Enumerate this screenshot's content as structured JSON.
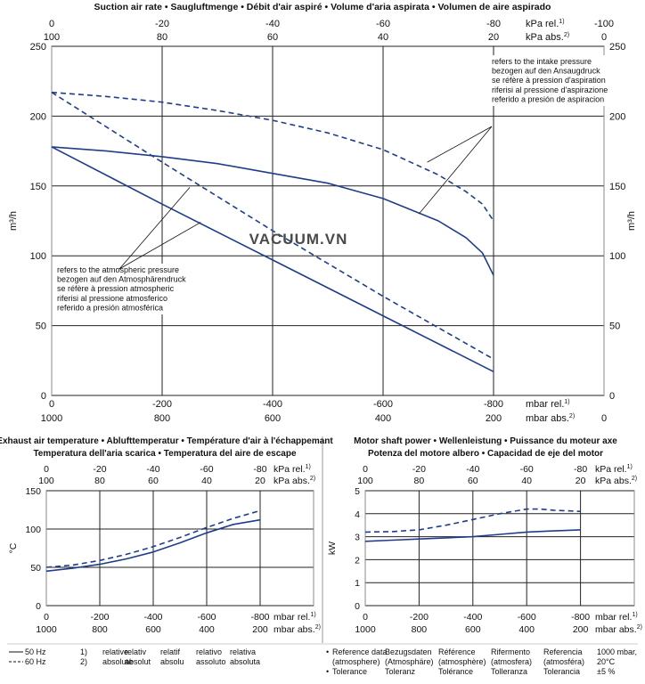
{
  "brand": {
    "watermark": "VACUUM.VN"
  },
  "colors": {
    "line": "#1f3d8a",
    "grid": "#222222",
    "text": "#111111",
    "frame": "#888888"
  },
  "chart_data": [
    {
      "id": "suction",
      "type": "line",
      "title": "Suction air rate  •  Saugluftmenge  •  Débit d'air aspiré  •  Volume d'aria aspirata  •  Volumen de aire aspirado",
      "ylabel": "m³/h",
      "xlim": [
        0,
        -1000
      ],
      "ylim": [
        0,
        250
      ],
      "yticks": [
        0,
        50,
        100,
        150,
        200,
        250
      ],
      "yticklabels": [
        "0",
        "50",
        "100",
        "150",
        "200",
        "250"
      ],
      "xgrid": [
        0,
        -200,
        -400,
        -600,
        -800,
        -1000
      ],
      "bottom_ticks": [
        {
          "x": 0,
          "rel": "0",
          "abs": "1000"
        },
        {
          "x": -200,
          "rel": "-200",
          "abs": "800"
        },
        {
          "x": -400,
          "rel": "-400",
          "abs": "600"
        },
        {
          "x": -600,
          "rel": "-600",
          "abs": "400"
        },
        {
          "x": -800,
          "rel": "-800",
          "abs": "200"
        },
        {
          "x": -1000,
          "rel": "",
          "abs": "0"
        }
      ],
      "bottom_units": {
        "rel": "mbar rel.",
        "abs": "mbar abs.",
        "rel_sup": "1)",
        "abs_sup": "2)"
      },
      "top_ticks": [
        {
          "x": 0,
          "rel": "0",
          "abs": "100"
        },
        {
          "x": -200,
          "rel": "-20",
          "abs": "80"
        },
        {
          "x": -400,
          "rel": "-40",
          "abs": "60"
        },
        {
          "x": -600,
          "rel": "-60",
          "abs": "40"
        },
        {
          "x": -800,
          "rel": "-80",
          "abs": "20"
        },
        {
          "x": -1000,
          "rel": "-100",
          "abs": "0"
        }
      ],
      "top_units": {
        "rel": "kPa rel.",
        "abs": "kPa abs.",
        "rel_sup": "1)",
        "abs_sup": "2)"
      },
      "series": [
        {
          "name": "50 Hz intake",
          "dash": false,
          "x": [
            0,
            -100,
            -200,
            -300,
            -400,
            -500,
            -600,
            -700,
            -750,
            -780,
            -800
          ],
          "y": [
            178,
            175,
            171,
            166,
            159,
            152,
            141,
            125,
            113,
            102,
            86
          ]
        },
        {
          "name": "60 Hz intake",
          "dash": true,
          "x": [
            0,
            -100,
            -200,
            -300,
            -400,
            -500,
            -600,
            -700,
            -750,
            -780,
            -800
          ],
          "y": [
            217,
            214,
            210,
            204,
            197,
            188,
            176,
            158,
            146,
            137,
            125
          ]
        },
        {
          "name": "50 Hz atmospheric",
          "dash": false,
          "x": [
            0,
            -200,
            -400,
            -600,
            -800
          ],
          "y": [
            178,
            137,
            97,
            57,
            17
          ]
        },
        {
          "name": "60 Hz atmospheric",
          "dash": true,
          "x": [
            0,
            -200,
            -400,
            -600,
            -800
          ],
          "y": [
            217,
            167,
            118,
            71,
            26
          ]
        }
      ],
      "annotations": [
        {
          "lines": [
            "refers to the intake pressure",
            "bezogen auf den Ansaugdruck",
            "se réfère à pression d'aspiration",
            "riferisi al pressione d'aspirazione",
            "referido a presión de aspiracion"
          ],
          "targets": [
            {
              "x": -680,
              "y": 167
            },
            {
              "x": -665,
              "y": 130
            }
          ]
        },
        {
          "lines": [
            "refers to the atmospheric pressure",
            "bezogen auf den Atmosphärendruck",
            "se réfère à pression atmospheric",
            "riferisi al pressione atmosferico",
            "referido a presión atmosférica"
          ],
          "targets": [
            {
              "x": -250,
              "y": 149
            },
            {
              "x": -270,
              "y": 124
            }
          ]
        }
      ]
    },
    {
      "id": "temperature",
      "type": "line",
      "title": [
        "Exhaust air temperature  •  Ablufttemperatur  •  Température d'air à l'échappemant",
        "Temperatura dell'aria scarica  •  Temperatura del aire de escape"
      ],
      "ylabel": "°C",
      "xlim": [
        0,
        -1000
      ],
      "ylim": [
        0,
        150
      ],
      "yticks": [
        0,
        50,
        100,
        150
      ],
      "yticklabels": [
        "0",
        "50",
        "100",
        "150"
      ],
      "xgrid": [
        0,
        -200,
        -400,
        -600,
        -800,
        -1000
      ],
      "bottom_ticks": [
        {
          "x": 0,
          "rel": "0",
          "abs": "1000"
        },
        {
          "x": -200,
          "rel": "-200",
          "abs": "800"
        },
        {
          "x": -400,
          "rel": "-400",
          "abs": "600"
        },
        {
          "x": -600,
          "rel": "-600",
          "abs": "400"
        },
        {
          "x": -800,
          "rel": "-800",
          "abs": "200"
        }
      ],
      "bottom_units": {
        "rel": "mbar rel.",
        "abs": "mbar abs.",
        "rel_sup": "1)",
        "abs_sup": "2)"
      },
      "top_ticks": [
        {
          "x": 0,
          "rel": "0",
          "abs": "100"
        },
        {
          "x": -200,
          "rel": "-20",
          "abs": "80"
        },
        {
          "x": -400,
          "rel": "-40",
          "abs": "60"
        },
        {
          "x": -600,
          "rel": "-60",
          "abs": "40"
        },
        {
          "x": -800,
          "rel": "-80",
          "abs": "20"
        }
      ],
      "top_units": {
        "rel": "kPa rel.",
        "abs": "kPa abs.",
        "rel_sup": "1)",
        "abs_sup": "2)"
      },
      "series": [
        {
          "name": "50 Hz",
          "dash": false,
          "x": [
            0,
            -100,
            -200,
            -300,
            -400,
            -500,
            -600,
            -700,
            -800
          ],
          "y": [
            45,
            49,
            54,
            61,
            70,
            82,
            95,
            106,
            112
          ]
        },
        {
          "name": "60 Hz",
          "dash": true,
          "x": [
            0,
            -100,
            -200,
            -300,
            -400,
            -500,
            -600,
            -700,
            -800
          ],
          "y": [
            50,
            53,
            59,
            67,
            77,
            89,
            102,
            114,
            124
          ]
        }
      ]
    },
    {
      "id": "power",
      "type": "line",
      "title": [
        "Motor shaft power  •  Wellenleistung  •  Puissance du moteur axe",
        "Potenza del motore albero  •  Capacidad de eje del motor"
      ],
      "ylabel": "kW",
      "xlim": [
        0,
        -1000
      ],
      "ylim": [
        0,
        5
      ],
      "yticks": [
        0,
        1,
        2,
        3,
        4,
        5
      ],
      "yticklabels": [
        "0",
        "1",
        "2",
        "3",
        "4",
        "5"
      ],
      "xgrid": [
        0,
        -200,
        -400,
        -600,
        -800,
        -1000
      ],
      "bottom_ticks": [
        {
          "x": 0,
          "rel": "0",
          "abs": "1000"
        },
        {
          "x": -200,
          "rel": "-200",
          "abs": "800"
        },
        {
          "x": -400,
          "rel": "-400",
          "abs": "600"
        },
        {
          "x": -600,
          "rel": "-600",
          "abs": "400"
        },
        {
          "x": -800,
          "rel": "-800",
          "abs": "200"
        }
      ],
      "bottom_units": {
        "rel": "mbar rel.",
        "abs": "mbar abs.",
        "rel_sup": "1)",
        "abs_sup": "2)"
      },
      "top_ticks": [
        {
          "x": 0,
          "rel": "0",
          "abs": "100"
        },
        {
          "x": -200,
          "rel": "-20",
          "abs": "80"
        },
        {
          "x": -400,
          "rel": "-40",
          "abs": "60"
        },
        {
          "x": -600,
          "rel": "-60",
          "abs": "40"
        },
        {
          "x": -800,
          "rel": "-80",
          "abs": "20"
        }
      ],
      "top_units": {
        "rel": "kPa rel.",
        "abs": "kPa abs.",
        "rel_sup": "1)",
        "abs_sup": "2)"
      },
      "series": [
        {
          "name": "50 Hz",
          "dash": false,
          "x": [
            0,
            -100,
            -200,
            -300,
            -400,
            -500,
            -600,
            -700,
            -800
          ],
          "y": [
            2.8,
            2.85,
            2.9,
            2.95,
            3.0,
            3.1,
            3.2,
            3.25,
            3.3
          ]
        },
        {
          "name": "60 Hz",
          "dash": true,
          "x": [
            0,
            -100,
            -200,
            -300,
            -400,
            -500,
            -600,
            -650,
            -700,
            -800
          ],
          "y": [
            3.2,
            3.22,
            3.3,
            3.5,
            3.75,
            4.0,
            4.2,
            4.2,
            4.15,
            4.1
          ]
        }
      ]
    }
  ],
  "footer": {
    "legend": [
      {
        "label": "50 Hz",
        "dash": false
      },
      {
        "label": "60 Hz",
        "dash": true
      }
    ],
    "footnotes": [
      {
        "num": "1)",
        "words": [
          "relative",
          "relativ",
          "relatif",
          "relativo",
          "relativa"
        ]
      },
      {
        "num": "2)",
        "words": [
          "absolute",
          "absolut",
          "absolu",
          "assoluto",
          "absoluta"
        ]
      }
    ],
    "reference": {
      "bullets": [
        "Reference data",
        "(atmosphere)",
        "Tolerance"
      ],
      "cols": [
        [
          "Bezugsdaten",
          "(Atmosphäre)",
          "Toleranz"
        ],
        [
          "Référence",
          "(atmosphère)",
          "Tolérance"
        ],
        [
          "Rifermento",
          "(atmosfera)",
          "Tolleranza"
        ],
        [
          "Referencia",
          "(atmosféra)",
          "Tolerancia"
        ]
      ],
      "values": [
        "1000 mbar,",
        "20°C",
        "±5 %"
      ]
    }
  }
}
